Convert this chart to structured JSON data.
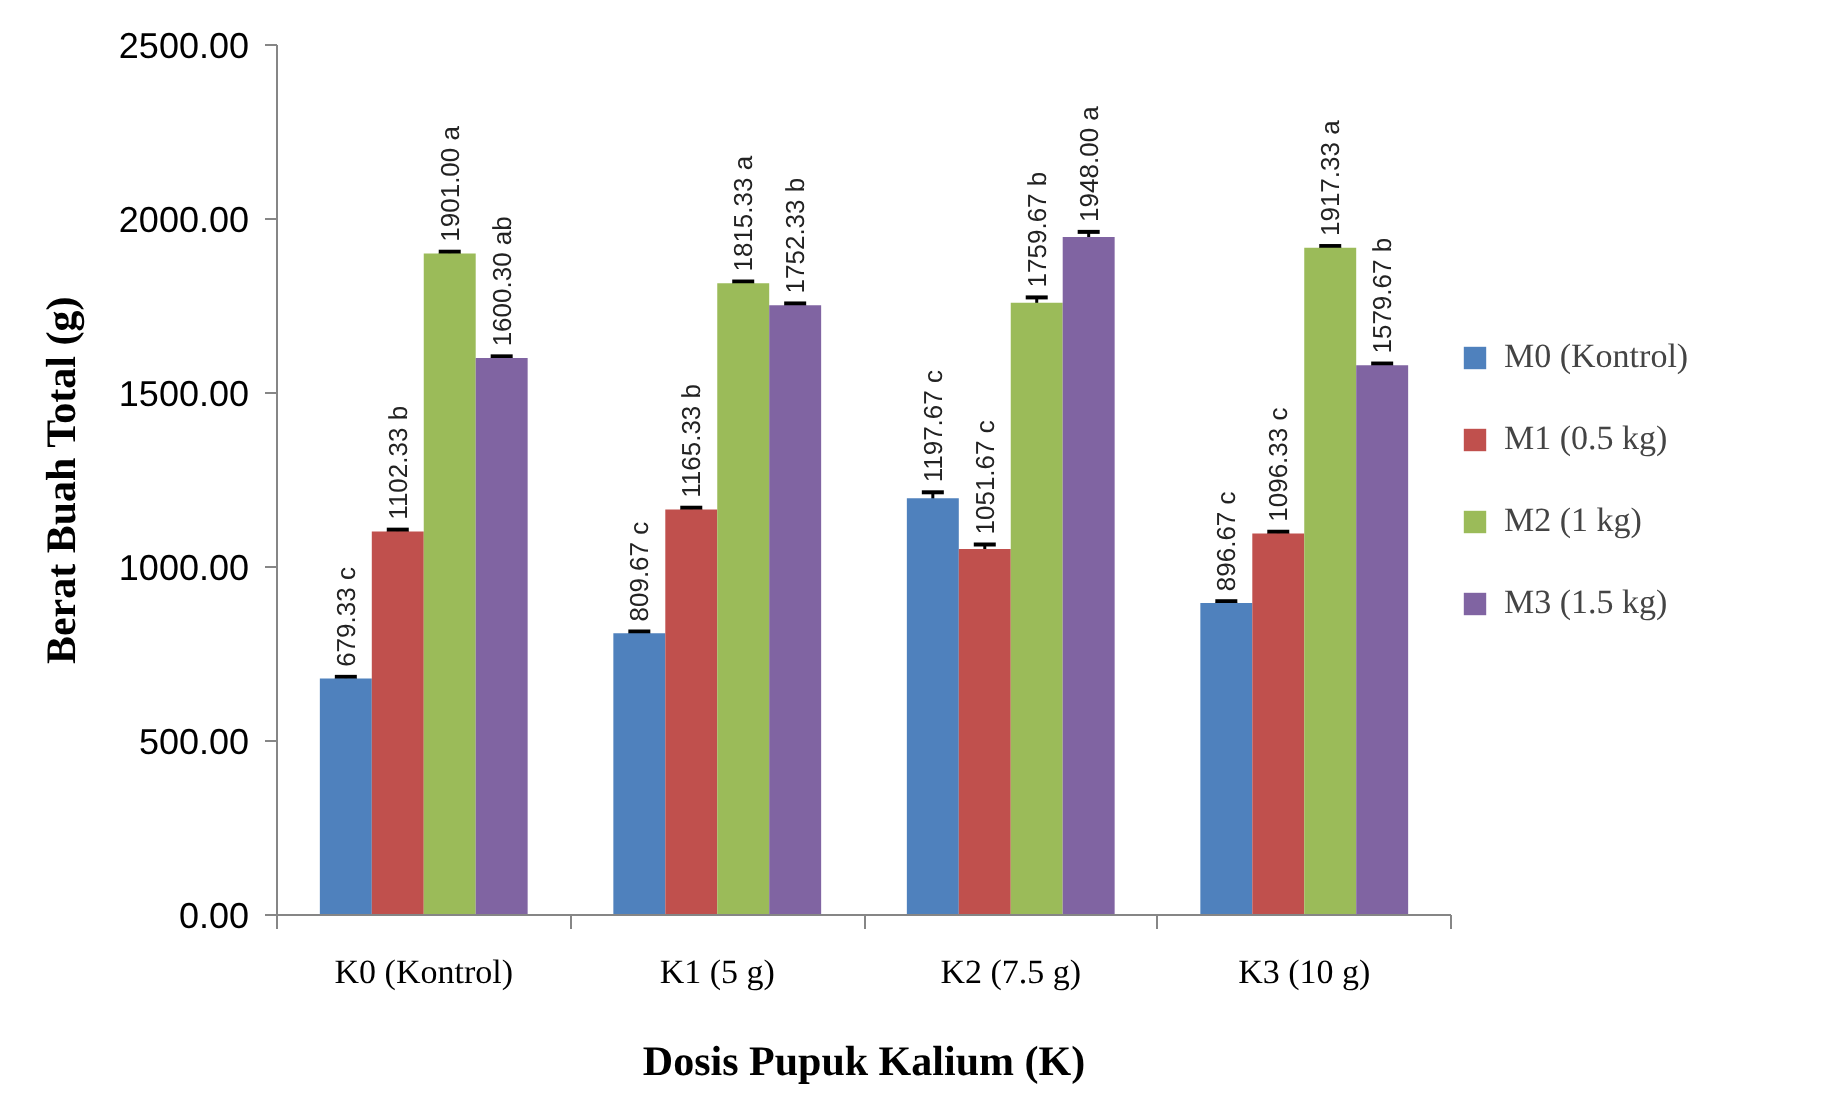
{
  "chart_data": {
    "type": "bar",
    "xlabel": "Dosis Pupuk Kalium (K)",
    "ylabel": "Berat Buah Total (g)",
    "categories": [
      "K0 (Kontrol)",
      "K1 (5 g)",
      "K2 (7.5 g)",
      "K3 (10 g)"
    ],
    "series": [
      {
        "name": "M0 (Kontrol)",
        "color": "#4f81bd",
        "values": [
          679.33,
          809.67,
          1197.67,
          896.67
        ],
        "errors": [
          5,
          5,
          17,
          5
        ],
        "value_labels": [
          "679.33 c",
          "809.67 c",
          "1197.67 c",
          "896.67 c"
        ]
      },
      {
        "name": "M1 (0.5 kg)",
        "color": "#c0504d",
        "values": [
          1102.33,
          1165.33,
          1051.67,
          1096.33
        ],
        "errors": [
          5,
          5,
          13,
          5
        ],
        "value_labels": [
          "1102.33 b",
          "1165.33 b",
          "1051.67 c",
          "1096.33 c"
        ]
      },
      {
        "name": "M2 (1 kg)",
        "color": "#9bbb59",
        "values": [
          1901.0,
          1815.33,
          1759.67,
          1917.33
        ],
        "errors": [
          5,
          5,
          15,
          5
        ],
        "value_labels": [
          "1901.00 a",
          "1815.33 a",
          "1759.67 b",
          "1917.33 a"
        ]
      },
      {
        "name": "M3 (1.5 kg)",
        "color": "#8064a2",
        "values": [
          1600.3,
          1752.33,
          1948.0,
          1579.67
        ],
        "errors": [
          5,
          5,
          15,
          5
        ],
        "value_labels": [
          "1600.30 ab",
          "1752.33 b",
          "1948.00 a",
          "1579.67 b"
        ]
      }
    ],
    "ylim": [
      0,
      2500
    ],
    "yticks": [
      {
        "value": 0,
        "label": "0.00"
      },
      {
        "value": 500,
        "label": "500.00"
      },
      {
        "value": 1000,
        "label": "1000.00"
      },
      {
        "value": 1500,
        "label": "1500.00"
      },
      {
        "value": 2000,
        "label": "2000.00"
      },
      {
        "value": 2500,
        "label": "2500.00"
      }
    ],
    "legend": "right"
  }
}
